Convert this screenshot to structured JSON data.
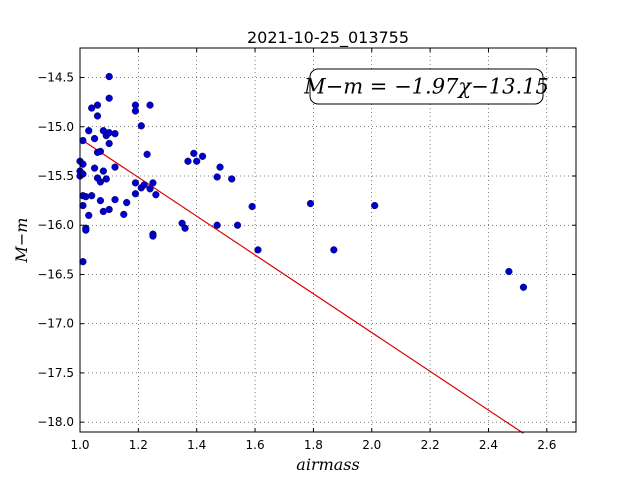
{
  "chart_data": {
    "type": "scatter",
    "title": "2021-10-25_013755",
    "xlabel": "airmass",
    "ylabel": "M−m",
    "xlim": [
      1.0,
      2.7
    ],
    "ylim": [
      -18.1,
      -14.2
    ],
    "xticks": [
      1.0,
      1.2,
      1.4,
      1.6,
      1.8,
      2.0,
      2.2,
      2.4,
      2.6
    ],
    "xtick_labels": [
      "1.0",
      "1.2",
      "1.4",
      "1.6",
      "1.8",
      "2.0",
      "2.2",
      "2.4",
      "2.6"
    ],
    "yticks": [
      -14.5,
      -15.0,
      -15.5,
      -16.0,
      -16.5,
      -17.0,
      -17.5,
      -18.0
    ],
    "ytick_labels": [
      "−14.5",
      "−15.0",
      "−15.5",
      "−16.0",
      "−16.5",
      "−17.0",
      "−17.5",
      "−18.0"
    ],
    "grid": true,
    "fit_annotation": "M−m = −1.97χ−13.15",
    "fit_line": {
      "slope": -1.97,
      "intercept": -13.15,
      "x_range": [
        1.0,
        2.52
      ],
      "color": "#dd0000"
    },
    "point_color": "#0000cc",
    "points": [
      [
        1.0,
        -15.35
      ],
      [
        1.0,
        -15.45
      ],
      [
        1.0,
        -15.5
      ],
      [
        1.01,
        -15.14
      ],
      [
        1.01,
        -15.38
      ],
      [
        1.01,
        -15.48
      ],
      [
        1.01,
        -15.7
      ],
      [
        1.01,
        -15.8
      ],
      [
        1.01,
        -16.37
      ],
      [
        1.02,
        -15.71
      ],
      [
        1.02,
        -16.03
      ],
      [
        1.02,
        -16.05
      ],
      [
        1.03,
        -15.04
      ],
      [
        1.03,
        -15.9
      ],
      [
        1.04,
        -14.81
      ],
      [
        1.04,
        -15.7
      ],
      [
        1.05,
        -15.42
      ],
      [
        1.05,
        -15.12
      ],
      [
        1.06,
        -14.78
      ],
      [
        1.06,
        -14.89
      ],
      [
        1.06,
        -15.26
      ],
      [
        1.06,
        -15.52
      ],
      [
        1.07,
        -15.25
      ],
      [
        1.07,
        -15.56
      ],
      [
        1.07,
        -15.75
      ],
      [
        1.08,
        -15.04
      ],
      [
        1.08,
        -15.45
      ],
      [
        1.08,
        -15.86
      ],
      [
        1.09,
        -15.09
      ],
      [
        1.09,
        -15.53
      ],
      [
        1.1,
        -14.49
      ],
      [
        1.1,
        -14.71
      ],
      [
        1.1,
        -15.06
      ],
      [
        1.1,
        -15.17
      ],
      [
        1.1,
        -15.84
      ],
      [
        1.12,
        -15.07
      ],
      [
        1.12,
        -15.41
      ],
      [
        1.12,
        -15.74
      ],
      [
        1.15,
        -15.89
      ],
      [
        1.16,
        -15.77
      ],
      [
        1.19,
        -14.78
      ],
      [
        1.19,
        -14.84
      ],
      [
        1.19,
        -15.57
      ],
      [
        1.19,
        -15.68
      ],
      [
        1.21,
        -14.99
      ],
      [
        1.21,
        -15.62
      ],
      [
        1.22,
        -15.59
      ],
      [
        1.23,
        -15.28
      ],
      [
        1.24,
        -14.78
      ],
      [
        1.24,
        -15.63
      ],
      [
        1.25,
        -15.57
      ],
      [
        1.25,
        -16.09
      ],
      [
        1.25,
        -16.11
      ],
      [
        1.26,
        -15.69
      ],
      [
        1.35,
        -15.98
      ],
      [
        1.36,
        -16.03
      ],
      [
        1.37,
        -15.35
      ],
      [
        1.39,
        -15.27
      ],
      [
        1.4,
        -15.35
      ],
      [
        1.42,
        -15.3
      ],
      [
        1.47,
        -15.51
      ],
      [
        1.47,
        -16.0
      ],
      [
        1.48,
        -15.41
      ],
      [
        1.52,
        -15.53
      ],
      [
        1.54,
        -16.0
      ],
      [
        1.59,
        -15.81
      ],
      [
        1.61,
        -16.25
      ],
      [
        1.79,
        -15.78
      ],
      [
        1.87,
        -16.25
      ],
      [
        2.01,
        -15.8
      ],
      [
        2.47,
        -16.47
      ],
      [
        2.52,
        -16.63
      ]
    ]
  }
}
